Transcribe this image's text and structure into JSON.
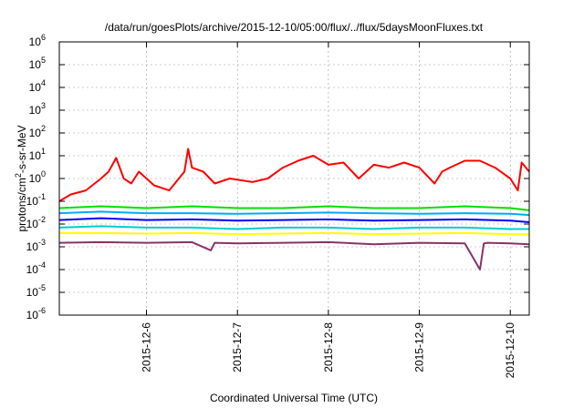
{
  "chart_data": {
    "type": "line",
    "title": "/data/run/goesPlots/archive/2015-12-10/05:00/flux/../flux/5daysMoonFluxes.txt",
    "xlabel": "Coordinated Universal Time (UTC)",
    "ylabel": {
      "pre": "protons/cm",
      "sup": "2",
      "post": "-s-sr-MeV"
    },
    "yscale": "log",
    "ylim": [
      1e-06,
      1000000.0
    ],
    "yticks": [
      {
        "value": 1e-06,
        "base": "10",
        "exp": "-6"
      },
      {
        "value": 1e-05,
        "base": "10",
        "exp": "-5"
      },
      {
        "value": 0.0001,
        "base": "10",
        "exp": "-4"
      },
      {
        "value": 0.001,
        "base": "10",
        "exp": "-3"
      },
      {
        "value": 0.01,
        "base": "10",
        "exp": "-2"
      },
      {
        "value": 0.1,
        "base": "10",
        "exp": "-1"
      },
      {
        "value": 1,
        "base": "10",
        "exp": "0"
      },
      {
        "value": 10,
        "base": "10",
        "exp": "1"
      },
      {
        "value": 100,
        "base": "10",
        "exp": "2"
      },
      {
        "value": 1000,
        "base": "10",
        "exp": "3"
      },
      {
        "value": 10000,
        "base": "10",
        "exp": "4"
      },
      {
        "value": 100000,
        "base": "10",
        "exp": "5"
      },
      {
        "value": 1000000,
        "base": "10",
        "exp": "6"
      }
    ],
    "xlim": [
      "2015-12-05 01:00",
      "2015-12-10 05:00"
    ],
    "xticks": [
      "2015-12-6",
      "2015-12-7",
      "2015-12-8",
      "2015-12-9",
      "2015-12-10"
    ],
    "grid": true,
    "legend": "none",
    "series": [
      {
        "color": "#ff0000",
        "x": [
          "2015-12-05 01:00",
          "2015-12-05 04:00",
          "2015-12-05 08:00",
          "2015-12-05 12:00",
          "2015-12-05 14:00",
          "2015-12-05 16:00",
          "2015-12-05 18:00",
          "2015-12-05 20:00",
          "2015-12-05 22:00",
          "2015-12-06 02:00",
          "2015-12-06 06:00",
          "2015-12-06 10:00",
          "2015-12-06 11:00",
          "2015-12-06 12:00",
          "2015-12-06 15:00",
          "2015-12-06 18:00",
          "2015-12-06 22:00",
          "2015-12-07 04:00",
          "2015-12-07 08:00",
          "2015-12-07 12:00",
          "2015-12-07 16:00",
          "2015-12-07 20:00",
          "2015-12-08 00:00",
          "2015-12-08 04:00",
          "2015-12-08 08:00",
          "2015-12-08 12:00",
          "2015-12-08 16:00",
          "2015-12-08 20:00",
          "2015-12-09 00:00",
          "2015-12-09 04:00",
          "2015-12-09 06:00",
          "2015-12-09 08:00",
          "2015-12-09 12:00",
          "2015-12-09 16:00",
          "2015-12-09 20:00",
          "2015-12-10 00:00",
          "2015-12-10 02:00",
          "2015-12-10 03:00",
          "2015-12-10 05:00"
        ],
        "y": [
          0.1,
          0.2,
          0.3,
          1.0,
          2.0,
          8.0,
          1.0,
          0.6,
          2.0,
          0.5,
          0.3,
          2.0,
          20,
          3.0,
          2.0,
          0.6,
          1.0,
          0.7,
          1.0,
          3.0,
          6.0,
          10,
          4.0,
          5.0,
          1.0,
          4.0,
          3.0,
          5.0,
          3.0,
          0.6,
          2.0,
          3.0,
          6.0,
          6.0,
          3.0,
          1.0,
          0.3,
          5.0,
          2.0
        ]
      },
      {
        "color": "#00e000",
        "x": [
          "2015-12-05 01:00",
          "2015-12-05 12:00",
          "2015-12-06 00:00",
          "2015-12-06 12:00",
          "2015-12-07 00:00",
          "2015-12-07 12:00",
          "2015-12-08 00:00",
          "2015-12-08 12:00",
          "2015-12-09 00:00",
          "2015-12-09 12:00",
          "2015-12-10 00:00",
          "2015-12-10 05:00"
        ],
        "y": [
          0.05,
          0.06,
          0.05,
          0.06,
          0.05,
          0.05,
          0.06,
          0.05,
          0.05,
          0.06,
          0.05,
          0.04
        ]
      },
      {
        "color": "#00aaff",
        "x": [
          "2015-12-05 01:00",
          "2015-12-05 12:00",
          "2015-12-06 00:00",
          "2015-12-06 12:00",
          "2015-12-07 00:00",
          "2015-12-07 12:00",
          "2015-12-08 00:00",
          "2015-12-08 12:00",
          "2015-12-09 00:00",
          "2015-12-09 12:00",
          "2015-12-10 00:00",
          "2015-12-10 05:00"
        ],
        "y": [
          0.03,
          0.035,
          0.03,
          0.03,
          0.028,
          0.03,
          0.032,
          0.03,
          0.028,
          0.03,
          0.028,
          0.025
        ]
      },
      {
        "color": "#0000ff",
        "x": [
          "2015-12-05 01:00",
          "2015-12-05 12:00",
          "2015-12-06 00:00",
          "2015-12-06 12:00",
          "2015-12-07 00:00",
          "2015-12-07 12:00",
          "2015-12-08 00:00",
          "2015-12-08 12:00",
          "2015-12-09 00:00",
          "2015-12-09 12:00",
          "2015-12-10 00:00",
          "2015-12-10 05:00"
        ],
        "y": [
          0.015,
          0.018,
          0.015,
          0.016,
          0.014,
          0.015,
          0.016,
          0.014,
          0.015,
          0.016,
          0.014,
          0.012
        ]
      },
      {
        "color": "#00cccc",
        "x": [
          "2015-12-05 01:00",
          "2015-12-05 12:00",
          "2015-12-06 00:00",
          "2015-12-06 12:00",
          "2015-12-07 00:00",
          "2015-12-07 12:00",
          "2015-12-08 00:00",
          "2015-12-08 12:00",
          "2015-12-09 00:00",
          "2015-12-09 12:00",
          "2015-12-10 00:00",
          "2015-12-10 05:00"
        ],
        "y": [
          0.007,
          0.008,
          0.007,
          0.007,
          0.006,
          0.007,
          0.007,
          0.006,
          0.007,
          0.007,
          0.006,
          0.006
        ]
      },
      {
        "color": "#ffff00",
        "x": [
          "2015-12-05 01:00",
          "2015-12-05 12:00",
          "2015-12-06 00:00",
          "2015-12-06 12:00",
          "2015-12-07 00:00",
          "2015-12-07 12:00",
          "2015-12-08 00:00",
          "2015-12-08 12:00",
          "2015-12-09 00:00",
          "2015-12-09 12:00",
          "2015-12-10 00:00",
          "2015-12-10 05:00"
        ],
        "y": [
          0.004,
          0.004,
          0.0038,
          0.004,
          0.0036,
          0.0038,
          0.004,
          0.0036,
          0.0038,
          0.004,
          0.0036,
          0.0035
        ]
      },
      {
        "color": "#883366",
        "x": [
          "2015-12-05 01:00",
          "2015-12-05 12:00",
          "2015-12-06 00:00",
          "2015-12-06 12:00",
          "2015-12-06 17:00",
          "2015-12-06 18:00",
          "2015-12-07 00:00",
          "2015-12-07 12:00",
          "2015-12-08 00:00",
          "2015-12-08 12:00",
          "2015-12-09 00:00",
          "2015-12-09 12:00",
          "2015-12-09 16:00",
          "2015-12-09 17:00",
          "2015-12-09 18:00",
          "2015-12-10 00:00",
          "2015-12-10 05:00"
        ],
        "y": [
          0.0015,
          0.0016,
          0.0015,
          0.0016,
          0.0007,
          0.0015,
          0.0014,
          0.0015,
          0.0016,
          0.0013,
          0.0015,
          0.0014,
          0.0001,
          0.0014,
          0.0015,
          0.0014,
          0.0013
        ]
      }
    ]
  }
}
